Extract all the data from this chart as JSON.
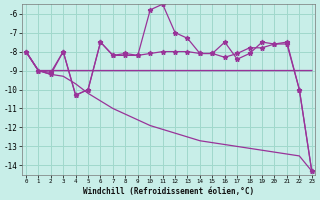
{
  "xlabel": "Windchill (Refroidissement éolien,°C)",
  "background_color": "#c8eee8",
  "grid_color": "#a0d8cc",
  "line_color": "#993399",
  "x": [
    0,
    1,
    2,
    3,
    4,
    5,
    6,
    7,
    8,
    9,
    10,
    11,
    12,
    13,
    14,
    15,
    16,
    17,
    18,
    19,
    20,
    21,
    22,
    23
  ],
  "series_zigzag": [
    -8.0,
    -9.0,
    -9.1,
    -8.0,
    -10.3,
    -10.0,
    -7.5,
    -8.2,
    -8.1,
    -8.2,
    -5.8,
    -5.5,
    -7.0,
    -7.3,
    -8.1,
    -8.1,
    -7.5,
    -8.4,
    -8.1,
    -7.5,
    -7.6,
    -7.5,
    -10.0,
    -14.3
  ],
  "series_smooth": [
    -8.0,
    -9.0,
    -9.2,
    -8.0,
    -10.3,
    -10.0,
    -7.5,
    -8.2,
    -8.2,
    -8.2,
    -8.1,
    -8.0,
    -8.0,
    -8.0,
    -8.1,
    -8.1,
    -8.3,
    -8.1,
    -7.8,
    -7.8,
    -7.6,
    -7.6,
    -10.0,
    -14.3
  ],
  "series_flat": [
    -8.0,
    -9.0,
    -9.0,
    -9.0,
    -9.0,
    -9.0,
    -9.0,
    -9.0,
    -9.0,
    -9.0,
    -9.0,
    -9.0,
    -9.0,
    -9.0,
    -9.0,
    -9.0,
    -9.0,
    -9.0,
    -9.0,
    -9.0,
    -9.0,
    -9.0,
    -9.0,
    -9.0
  ],
  "series_diagonal": [
    -8.0,
    -9.0,
    -9.2,
    -9.3,
    -9.7,
    -10.2,
    -10.6,
    -11.0,
    -11.3,
    -11.6,
    -11.9,
    -12.1,
    -12.3,
    -12.5,
    -12.7,
    -12.8,
    -12.9,
    -13.0,
    -13.1,
    -13.2,
    -13.3,
    -13.4,
    -13.5,
    -14.3
  ],
  "ylim": [
    -14.5,
    -5.5
  ],
  "yticks": [
    -14,
    -13,
    -12,
    -11,
    -10,
    -9,
    -8,
    -7,
    -6
  ],
  "xticks": [
    0,
    1,
    2,
    3,
    4,
    5,
    6,
    7,
    8,
    9,
    10,
    11,
    12,
    13,
    14,
    15,
    16,
    17,
    18,
    19,
    20,
    21,
    22,
    23
  ]
}
